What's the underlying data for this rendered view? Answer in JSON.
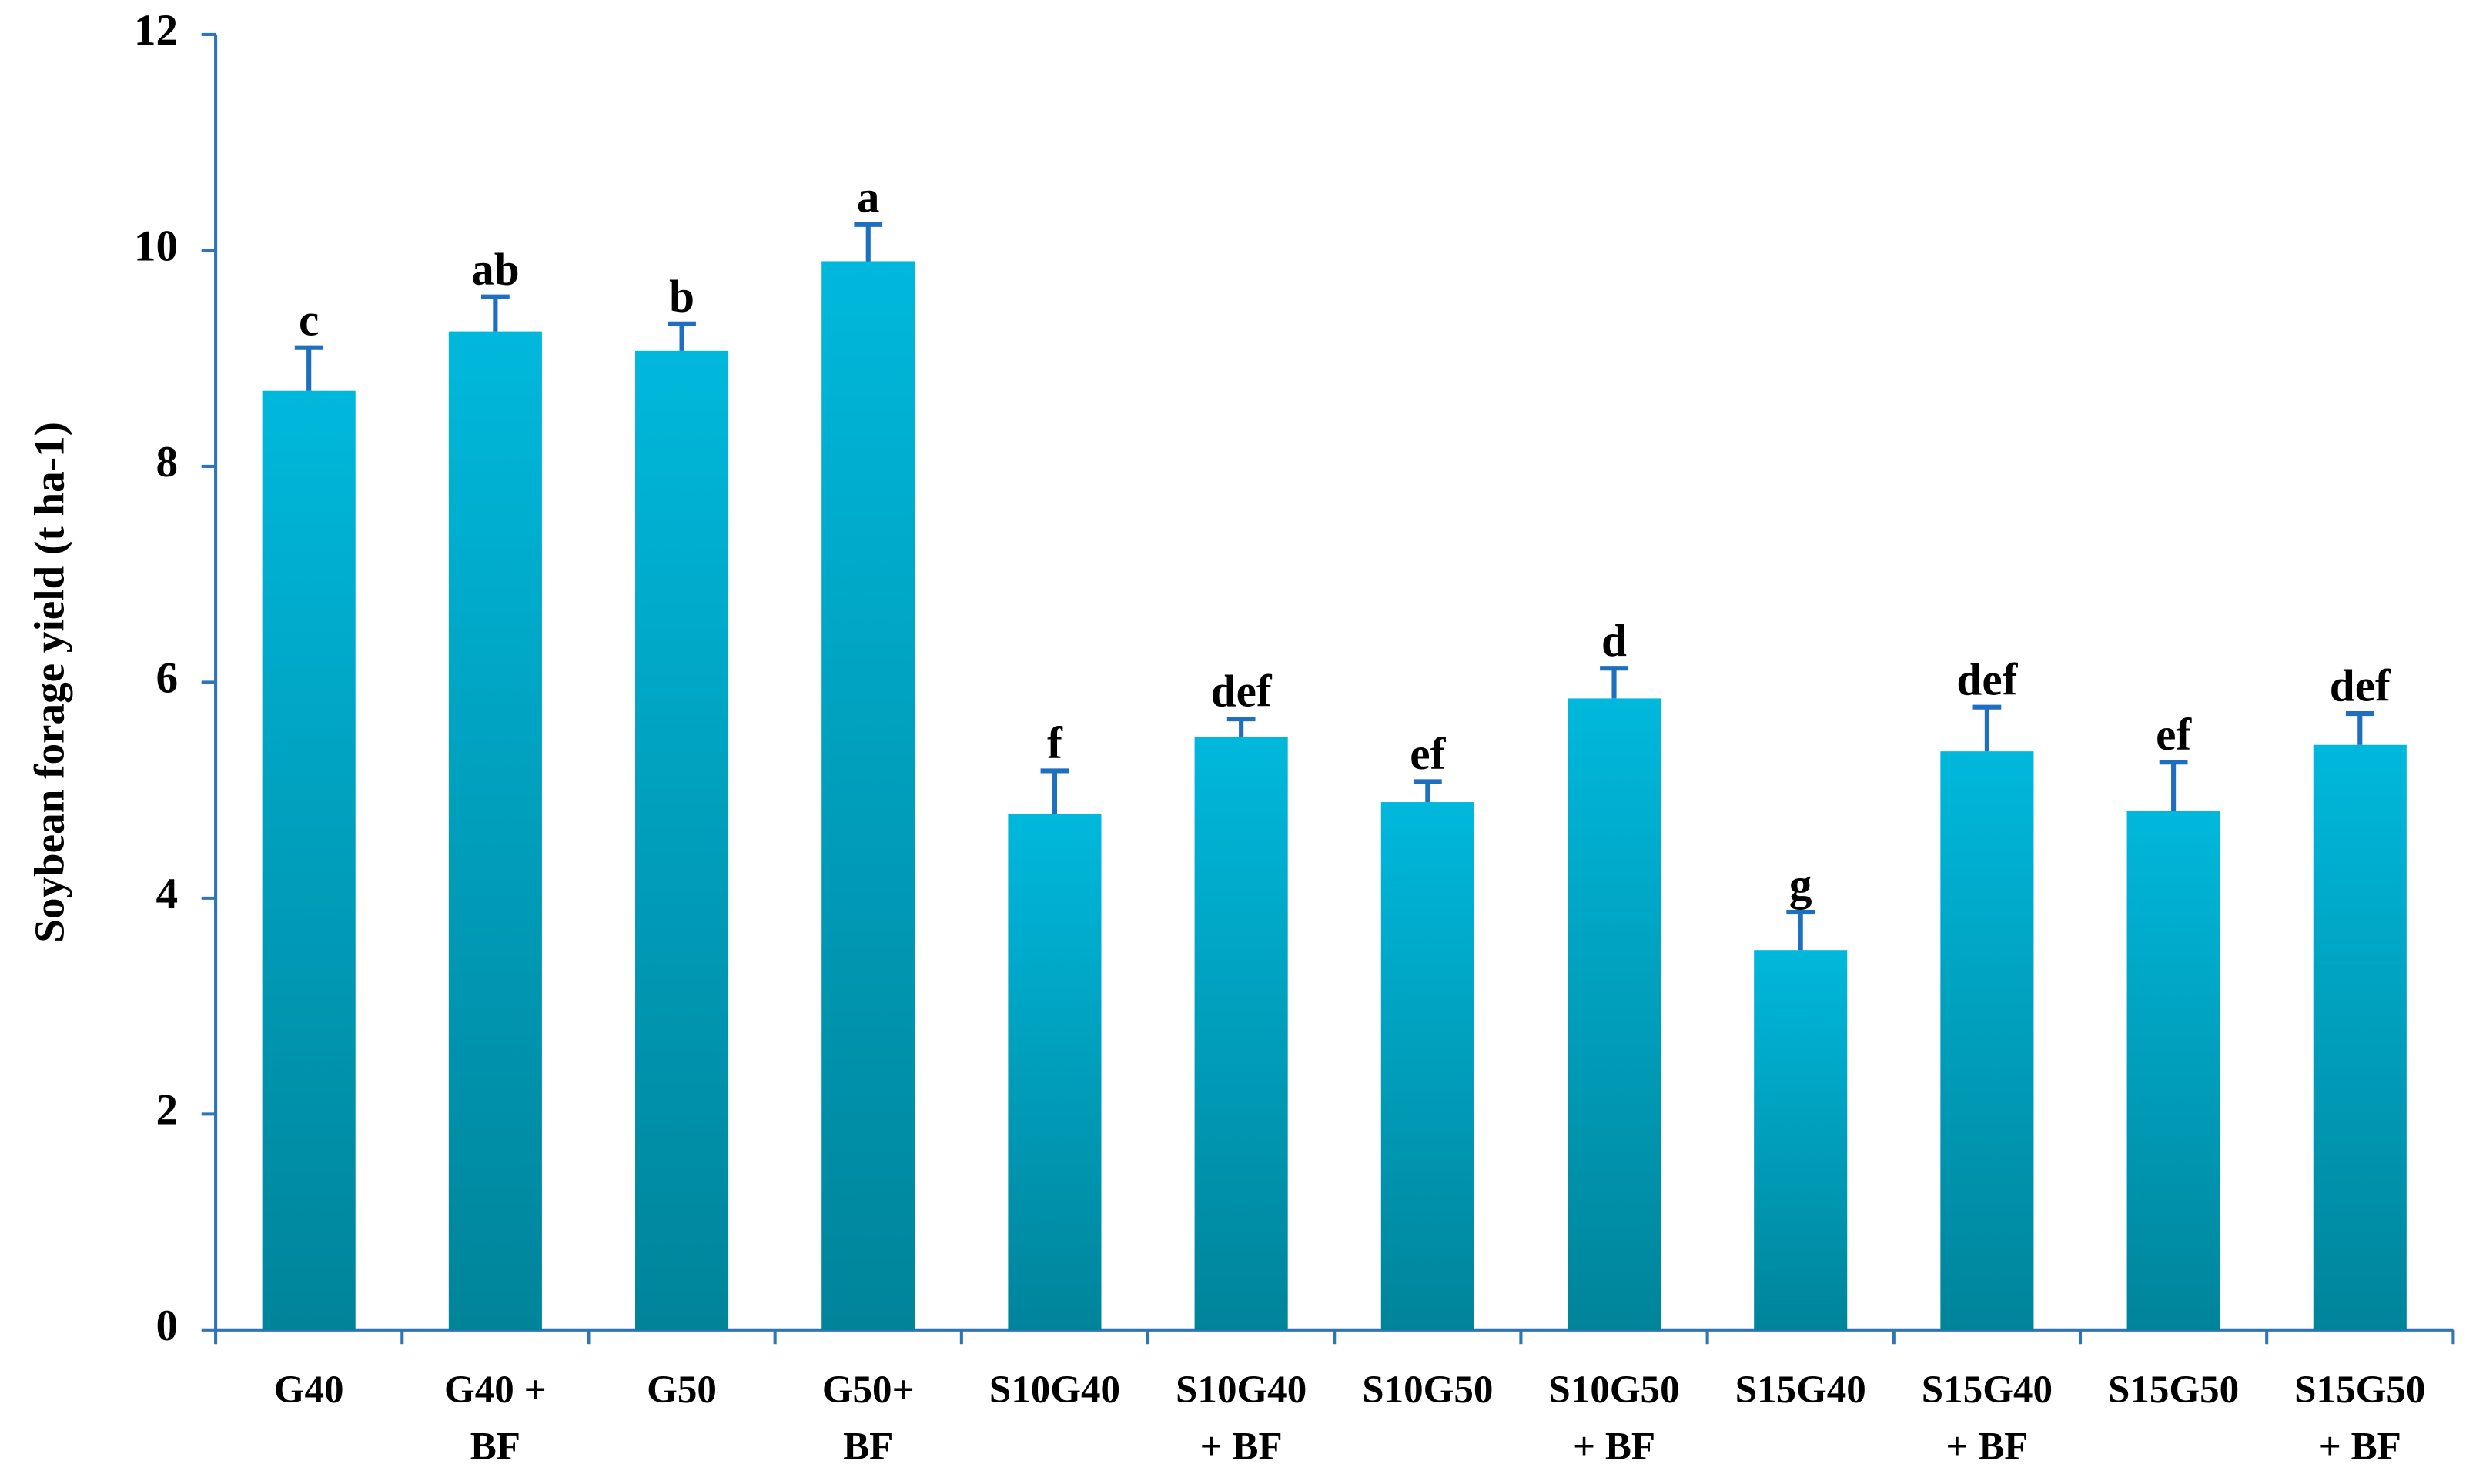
{
  "chart_data": {
    "type": "bar",
    "y_label": "Soybean forage yield (t ha-1)",
    "categories": [
      [
        "G40"
      ],
      [
        "G40 +",
        "BF"
      ],
      [
        "G50"
      ],
      [
        "G50+",
        "BF"
      ],
      [
        "S10G40"
      ],
      [
        "S10G40",
        "+ BF"
      ],
      [
        "S10G50"
      ],
      [
        "S10G50",
        "+ BF"
      ],
      [
        "S15G40"
      ],
      [
        "S15G40",
        "+ BF"
      ],
      [
        "S15G50"
      ],
      [
        "S15G50",
        "+ BF"
      ]
    ],
    "values": [
      8.7,
      9.25,
      9.07,
      9.9,
      4.78,
      5.49,
      4.89,
      5.85,
      3.52,
      5.36,
      4.81,
      5.42
    ],
    "errors": [
      0.4,
      0.32,
      0.25,
      0.34,
      0.4,
      0.17,
      0.19,
      0.28,
      0.35,
      0.41,
      0.45,
      0.29
    ],
    "significance_letters": [
      "c",
      "ab",
      "b",
      "a",
      "f",
      "def",
      "ef",
      "d",
      "g",
      "def",
      "ef",
      "def"
    ],
    "color": "#00a9c9",
    "error_color": "#1f6fc0",
    "axis_color": "#2e75b6",
    "ylim": [
      0,
      12
    ],
    "yticks": [
      0,
      2,
      4,
      6,
      8,
      10,
      12
    ],
    "grid": false
  }
}
